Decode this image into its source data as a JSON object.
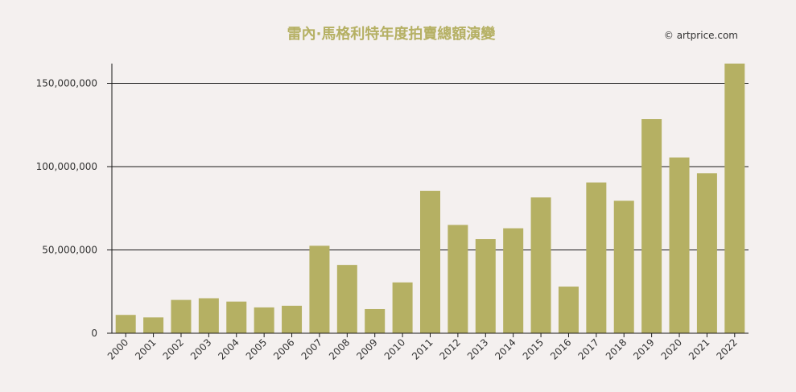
{
  "chart_data": {
    "type": "bar",
    "title": "雷內·馬格利特年度拍賣總額演變",
    "credit": "© artprice.com",
    "categories": [
      "2000",
      "2001",
      "2002",
      "2003",
      "2004",
      "2005",
      "2006",
      "2007",
      "2008",
      "2009",
      "2010",
      "2011",
      "2012",
      "2013",
      "2014",
      "2015",
      "2016",
      "2017",
      "2018",
      "2019",
      "2020",
      "2021",
      "2022"
    ],
    "values": [
      11000000,
      9500000,
      20000000,
      21000000,
      19000000,
      15500000,
      16500000,
      52500000,
      41000000,
      14500000,
      30500000,
      85500000,
      65000000,
      56500000,
      63000000,
      81500000,
      28000000,
      90500000,
      79500000,
      128500000,
      105500000,
      96000000,
      162000000
    ],
    "y_ticks": [
      {
        "value": 0,
        "label": "0"
      },
      {
        "value": 50000000,
        "label": "50,000,000"
      },
      {
        "value": 100000000,
        "label": "100,000,000"
      },
      {
        "value": 150000000,
        "label": "150,000,000"
      }
    ],
    "ylim": [
      0,
      162000000
    ],
    "grid": true,
    "colors": {
      "bar": "#b5b063",
      "gridline": "#1a1a1a",
      "axis": "#1a1a1a"
    }
  }
}
